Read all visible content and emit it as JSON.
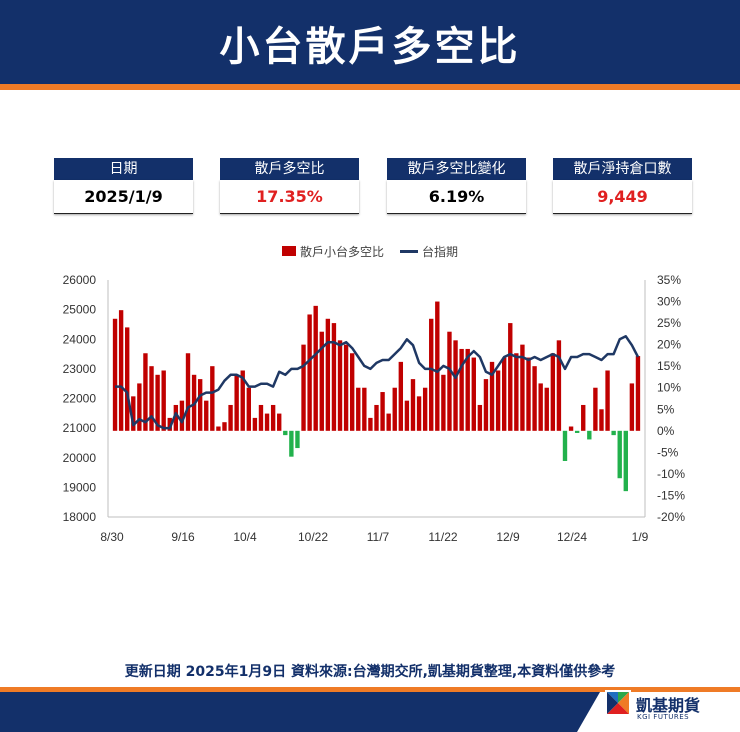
{
  "header": {
    "title": "小台散戶多空比"
  },
  "kpis": [
    {
      "label": "日期",
      "value": "2025/1/9"
    },
    {
      "label": "散戶多空比",
      "value": "17.35%"
    },
    {
      "label": "散戶多空比變化",
      "value": "6.19%"
    },
    {
      "label": "散戶淨持倉口數",
      "value": "9,449"
    }
  ],
  "colors": {
    "navy": "#13306a",
    "orange": "#ef7b26",
    "positive_bar": "#c00000",
    "negative_bar": "#22b14c",
    "line": "#1f3864",
    "highlight_value": "#e02020"
  },
  "chart_data": {
    "type": "bar+line",
    "x_ticks": [
      "8/30",
      "9/16",
      "10/4",
      "10/22",
      "11/7",
      "11/22",
      "12/9",
      "12/24",
      "1/9"
    ],
    "y_left": {
      "min": 18000,
      "max": 26000,
      "ticks": [
        "26000",
        "25000",
        "24000",
        "23000",
        "22000",
        "21000",
        "20000",
        "19000",
        "18000"
      ]
    },
    "y_right": {
      "min": -20,
      "max": 35,
      "unit": "%",
      "ticks": [
        "35%",
        "30%",
        "25%",
        "20%",
        "15%",
        "10%",
        "5%",
        "0%",
        "-5%",
        "-10%",
        "-15%",
        "-20%"
      ]
    },
    "legend_position": "top-center",
    "grid": false,
    "series": [
      {
        "name": "散戶小台多空比",
        "kind": "bar",
        "axis": "right",
        "values": [
          26,
          28,
          24,
          8,
          11,
          18,
          15,
          13,
          14,
          3,
          6,
          7,
          18,
          13,
          12,
          7,
          15,
          1,
          2,
          6,
          13,
          14,
          10,
          3,
          6,
          4,
          6,
          4,
          -1,
          -6,
          -4,
          20,
          27,
          29,
          23,
          26,
          25,
          21,
          20,
          18,
          10,
          10,
          3,
          6,
          9,
          4,
          10,
          16,
          7,
          12,
          8,
          10,
          26,
          30,
          13,
          23,
          21,
          19,
          19,
          17,
          6,
          12,
          16,
          14,
          17,
          25,
          18,
          20,
          17,
          15,
          11,
          10,
          18,
          21,
          -7,
          1,
          -0.5,
          6,
          -2,
          10,
          5,
          14,
          -1,
          -11,
          -14,
          11,
          17.35
        ]
      },
      {
        "name": "台指期",
        "kind": "line",
        "axis": "left",
        "values": [
          22400,
          22400,
          22200,
          21100,
          21300,
          21200,
          21400,
          21100,
          21000,
          21000,
          21500,
          21200,
          21700,
          21800,
          22100,
          22200,
          22200,
          22300,
          22600,
          22800,
          22800,
          22700,
          22400,
          22400,
          22500,
          22500,
          22400,
          22900,
          22800,
          23000,
          23000,
          23100,
          23300,
          23500,
          23700,
          23900,
          23900,
          23800,
          23900,
          23700,
          23400,
          23100,
          23000,
          23200,
          23300,
          23300,
          23500,
          23700,
          24000,
          23800,
          23200,
          23000,
          23000,
          22900,
          23100,
          23000,
          22700,
          23100,
          23400,
          23600,
          23400,
          22900,
          22800,
          23100,
          23400,
          23500,
          23400,
          23400,
          23300,
          23400,
          23300,
          23400,
          23500,
          23400,
          23000,
          23400,
          23400,
          23500,
          23500,
          23400,
          23300,
          23500,
          23500,
          24000,
          24100,
          23800,
          23400
        ]
      }
    ]
  },
  "footer": {
    "note": "更新日期  2025年1月9日 資料來源:台灣期交所,凱基期貨整理,本資料僅供參考",
    "logo_name": "凱基期貨",
    "logo_sub": "KGI FUTURES"
  }
}
